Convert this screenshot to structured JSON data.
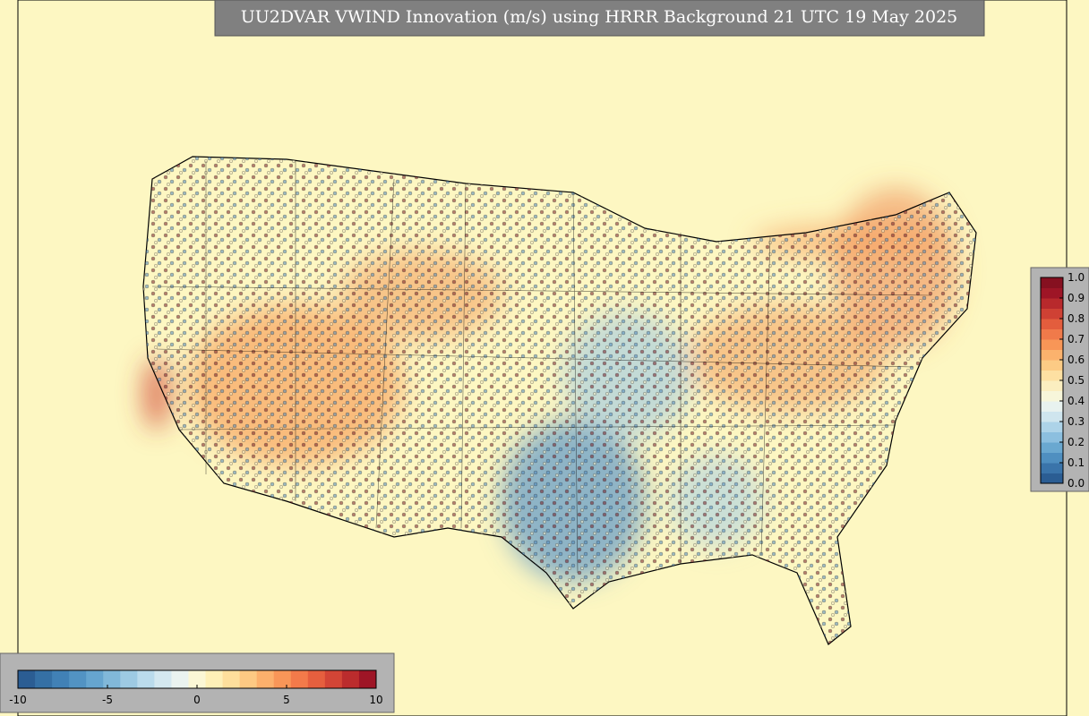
{
  "title": "UU2DVAR VWIND Innovation (m/s) using HRRR Background 21 UTC 19 May 2025",
  "colorbar": {
    "range": [
      -10,
      10
    ],
    "ticks": [
      -10,
      -5,
      0,
      5,
      10
    ],
    "colors": [
      "#2b5d93",
      "#3570a5",
      "#4181b6",
      "#5293c3",
      "#66a5cf",
      "#81b8d9",
      "#9dcae3",
      "#badbec",
      "#d4e8f0",
      "#eaf3f0",
      "#fbf7d5",
      "#fef0b7",
      "#fedf9c",
      "#fdc983",
      "#fcb06c",
      "#f99658",
      "#f37a4a",
      "#e65f3e",
      "#d34536",
      "#bb2c2d",
      "#9e1526"
    ]
  },
  "colorbar2": {
    "range": [
      0,
      1
    ],
    "ticks": [
      {
        "value": 0,
        "label": "0.0"
      },
      {
        "value": 0.1,
        "label": "0.1"
      },
      {
        "value": 0.2,
        "label": "0.2"
      },
      {
        "value": 0.3,
        "label": "0.3"
      },
      {
        "value": 0.4,
        "label": "0.4"
      },
      {
        "value": 0.5,
        "label": "0.5"
      },
      {
        "value": 0.6,
        "label": "0.6"
      },
      {
        "value": 0.7,
        "label": "0.7"
      },
      {
        "value": 0.8,
        "label": "0.8"
      },
      {
        "value": 0.9,
        "label": "0.9"
      },
      {
        "value": 1,
        "label": "1.0"
      }
    ],
    "colors": [
      "#2b5d93",
      "#3a74aa",
      "#4f8fc0",
      "#6aa8d0",
      "#8cbfdf",
      "#add3e8",
      "#cfe5ee",
      "#e8f2ef",
      "#f7f6da",
      "#fbeec0",
      "#fde0a2",
      "#fccb85",
      "#fbb26d",
      "#f89657",
      "#f07a4a",
      "#e35d3d",
      "#cf4134",
      "#b8292c",
      "#9e1526",
      "#861020"
    ]
  }
}
